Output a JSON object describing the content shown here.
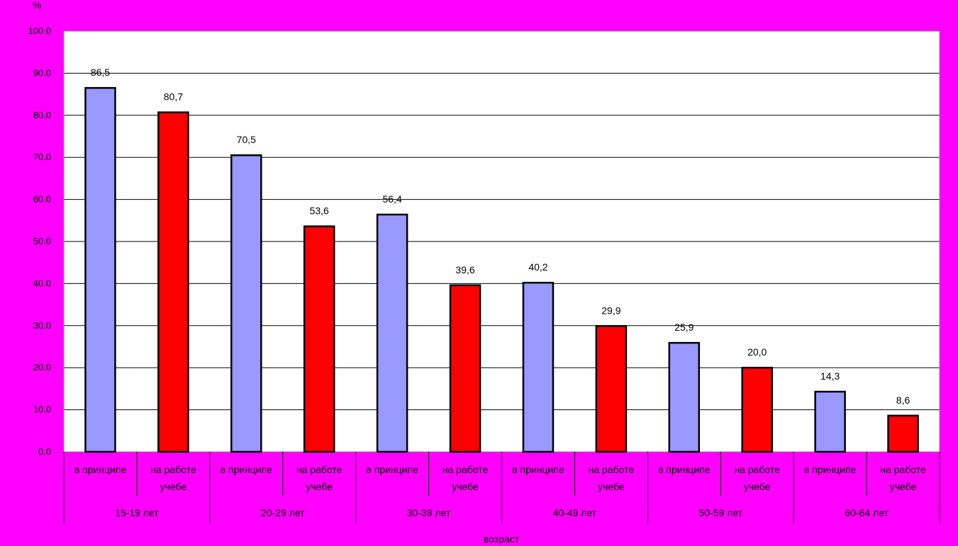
{
  "colors": {
    "background": "#ff00ff",
    "plot_area": "#ffffff",
    "series_a": "#9999ff",
    "series_b": "#ff0000",
    "axis_text": "#000000"
  },
  "chart_data": {
    "type": "bar",
    "ylabel": "%",
    "xlabel": "возраст",
    "ylim": [
      0,
      100
    ],
    "yticks": [
      "0.0",
      "10.0",
      "20.0",
      "30.0",
      "40.0",
      "50.0",
      "60.0",
      "70.0",
      "80.0",
      "90.0",
      "100.0"
    ],
    "grid": true,
    "legend": "none",
    "groups": [
      {
        "label": "15-19 лет",
        "bars": [
          {
            "sublabel": [
              "в принципе"
            ],
            "value": 86.5,
            "display": "86,5"
          },
          {
            "sublabel": [
              "на работе",
              "учебе"
            ],
            "value": 80.7,
            "display": "80,7"
          }
        ]
      },
      {
        "label": "20-29 лет",
        "bars": [
          {
            "sublabel": [
              "в принципе"
            ],
            "value": 70.5,
            "display": "70,5"
          },
          {
            "sublabel": [
              "на работе",
              "учебе"
            ],
            "value": 53.6,
            "display": "53,6"
          }
        ]
      },
      {
        "label": "30-39 лет",
        "bars": [
          {
            "sublabel": [
              "в принципе"
            ],
            "value": 56.4,
            "display": "56,4"
          },
          {
            "sublabel": [
              "на работе",
              "учебе"
            ],
            "value": 39.6,
            "display": "39,6"
          }
        ]
      },
      {
        "label": "40-49 лет",
        "bars": [
          {
            "sublabel": [
              "в принципе"
            ],
            "value": 40.2,
            "display": "40,2"
          },
          {
            "sublabel": [
              "на работе",
              "учебе"
            ],
            "value": 29.9,
            "display": "29,9"
          }
        ]
      },
      {
        "label": "50-59 лет",
        "bars": [
          {
            "sublabel": [
              "в принципе"
            ],
            "value": 25.9,
            "display": "25,9"
          },
          {
            "sublabel": [
              "на работе",
              "учебе"
            ],
            "value": 20.0,
            "display": "20,0"
          }
        ]
      },
      {
        "label": "60-64 лет",
        "bars": [
          {
            "sublabel": [
              "в принципе"
            ],
            "value": 14.3,
            "display": "14,3"
          },
          {
            "sublabel": [
              "на работе",
              "учебе"
            ],
            "value": 8.6,
            "display": "8,6"
          }
        ]
      }
    ]
  }
}
